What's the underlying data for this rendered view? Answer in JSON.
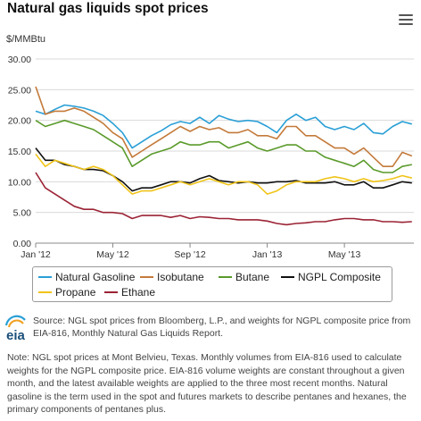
{
  "title": "Natural gas liquids spot prices",
  "unit_label": "$/MMBtu",
  "colors": {
    "natural_gasoline": "#2a9fd6",
    "isobutane": "#c47a3a",
    "butane": "#5a9a2a",
    "ngpl_composite": "#111111",
    "propane": "#f0c419",
    "ethane": "#9b2335",
    "grid": "#d9d9d9",
    "axis": "#888888"
  },
  "chart_data": {
    "type": "line",
    "title": "Natural gas liquids spot prices",
    "ylabel": "$/MMBtu",
    "xlabel": "",
    "ylim": [
      0,
      30
    ],
    "y_ticks": [
      "0.00",
      "5.00",
      "10.00",
      "15.00",
      "20.00",
      "25.00",
      "30.00"
    ],
    "x_tick_labels": [
      "Jan '12",
      "May '12",
      "Sep '12",
      "Jan '13",
      "May '13"
    ],
    "x_tick_months": [
      0,
      4,
      8,
      12,
      16
    ],
    "x_range_months": [
      0,
      19.6
    ],
    "grid": "horizontal",
    "legend_placement": "bottom",
    "x_months": [
      0,
      0.5,
      1,
      1.5,
      2,
      2.5,
      3,
      3.5,
      4,
      4.5,
      5,
      5.5,
      6,
      6.5,
      7,
      7.5,
      8,
      8.5,
      9,
      9.5,
      10,
      10.5,
      11,
      11.5,
      12,
      12.5,
      13,
      13.5,
      14,
      14.5,
      15,
      15.5,
      16,
      16.5,
      17,
      17.5,
      18,
      18.5,
      19,
      19.5
    ],
    "series": [
      {
        "name": "Natural Gasoline",
        "key": "natural_gasoline",
        "values": [
          21.5,
          21.0,
          21.8,
          22.5,
          22.3,
          22.0,
          21.5,
          20.8,
          19.5,
          18.0,
          15.5,
          16.5,
          17.5,
          18.3,
          19.3,
          19.8,
          19.5,
          20.5,
          19.5,
          20.8,
          20.2,
          19.8,
          20.0,
          19.8,
          19.0,
          18.0,
          20.0,
          21.0,
          20.0,
          20.5,
          19.0,
          18.5,
          19.0,
          18.5,
          19.5,
          18.0,
          17.8,
          19.0,
          19.8,
          19.4
        ]
      },
      {
        "name": "Isobutane",
        "key": "isobutane",
        "values": [
          25.5,
          21.0,
          21.5,
          21.5,
          22.0,
          21.5,
          20.5,
          19.5,
          18.0,
          17.0,
          14.0,
          15.0,
          16.0,
          17.0,
          18.0,
          19.0,
          18.2,
          19.0,
          18.5,
          18.8,
          18.0,
          18.0,
          18.5,
          17.5,
          17.5,
          17.0,
          19.0,
          19.0,
          17.5,
          17.5,
          16.5,
          15.5,
          15.5,
          14.5,
          15.5,
          14.0,
          12.5,
          12.5,
          14.8,
          14.2
        ]
      },
      {
        "name": "Butane",
        "key": "butane",
        "values": [
          20.0,
          19.0,
          19.5,
          20.0,
          19.5,
          19.0,
          18.5,
          17.5,
          16.5,
          15.5,
          12.5,
          13.5,
          14.5,
          15.0,
          15.5,
          16.5,
          16.0,
          16.0,
          16.5,
          16.5,
          15.5,
          16.0,
          16.5,
          15.5,
          15.0,
          15.5,
          16.0,
          16.0,
          15.0,
          15.0,
          14.0,
          13.5,
          13.0,
          12.5,
          13.5,
          12.0,
          11.5,
          11.5,
          12.5,
          12.8
        ]
      },
      {
        "name": "NGPL Composite",
        "key": "ngpl_composite",
        "values": [
          15.5,
          13.5,
          13.5,
          12.8,
          12.5,
          12.0,
          12.0,
          11.8,
          11.0,
          10.0,
          8.5,
          9.0,
          9.0,
          9.5,
          10.0,
          10.0,
          9.8,
          10.5,
          11.0,
          10.2,
          10.0,
          9.8,
          10.0,
          9.8,
          9.8,
          10.0,
          10.0,
          10.2,
          9.8,
          9.8,
          9.8,
          10.0,
          9.5,
          9.5,
          10.0,
          9.0,
          9.0,
          9.5,
          10.0,
          9.8
        ]
      },
      {
        "name": "Propane",
        "key": "propane",
        "values": [
          14.5,
          12.5,
          13.5,
          13.0,
          12.5,
          12.0,
          12.5,
          12.0,
          11.0,
          9.5,
          8.0,
          8.5,
          8.5,
          9.0,
          9.5,
          10.0,
          9.5,
          10.0,
          10.5,
          10.0,
          9.5,
          10.0,
          10.0,
          9.5,
          8.0,
          8.5,
          9.5,
          10.0,
          10.0,
          10.0,
          10.5,
          10.8,
          10.5,
          10.0,
          10.5,
          10.0,
          10.2,
          10.5,
          11.0,
          10.6
        ]
      },
      {
        "name": "Ethane",
        "key": "ethane",
        "values": [
          11.5,
          9.0,
          8.0,
          7.0,
          6.0,
          5.5,
          5.5,
          5.0,
          5.0,
          4.8,
          4.0,
          4.5,
          4.5,
          4.5,
          4.2,
          4.5,
          4.0,
          4.3,
          4.2,
          4.0,
          4.0,
          3.8,
          3.8,
          3.8,
          3.6,
          3.2,
          3.0,
          3.2,
          3.3,
          3.5,
          3.5,
          3.8,
          4.0,
          4.0,
          3.8,
          3.8,
          3.5,
          3.5,
          3.4,
          3.5
        ]
      }
    ]
  },
  "legend": [
    {
      "label": "Natural Gasoline",
      "key": "natural_gasoline"
    },
    {
      "label": "Isobutane",
      "key": "isobutane"
    },
    {
      "label": "Butane",
      "key": "butane"
    },
    {
      "label": "NGPL Composite",
      "key": "ngpl_composite"
    },
    {
      "label": "Propane",
      "key": "propane"
    },
    {
      "label": "Ethane",
      "key": "ethane"
    }
  ],
  "logo_text": "eia",
  "source_text": "Source: NGL spot prices from Bloomberg, L.P., and weights for NGPL composite price from EIA-816, Monthly Natural Gas Liquids Report.",
  "note_text": "Note: NGL spot prices at Mont Belvieu, Texas. Monthly volumes from EIA-816 used to calculate weights for the NGPL composite price. EIA-816 volume weights are constant throughout a given month, and the latest available weights are applied to the three most recent months. Natural gasoline is the term used in the spot and futures markets to describe pentanes and hexanes, the primary components of pentanes plus."
}
